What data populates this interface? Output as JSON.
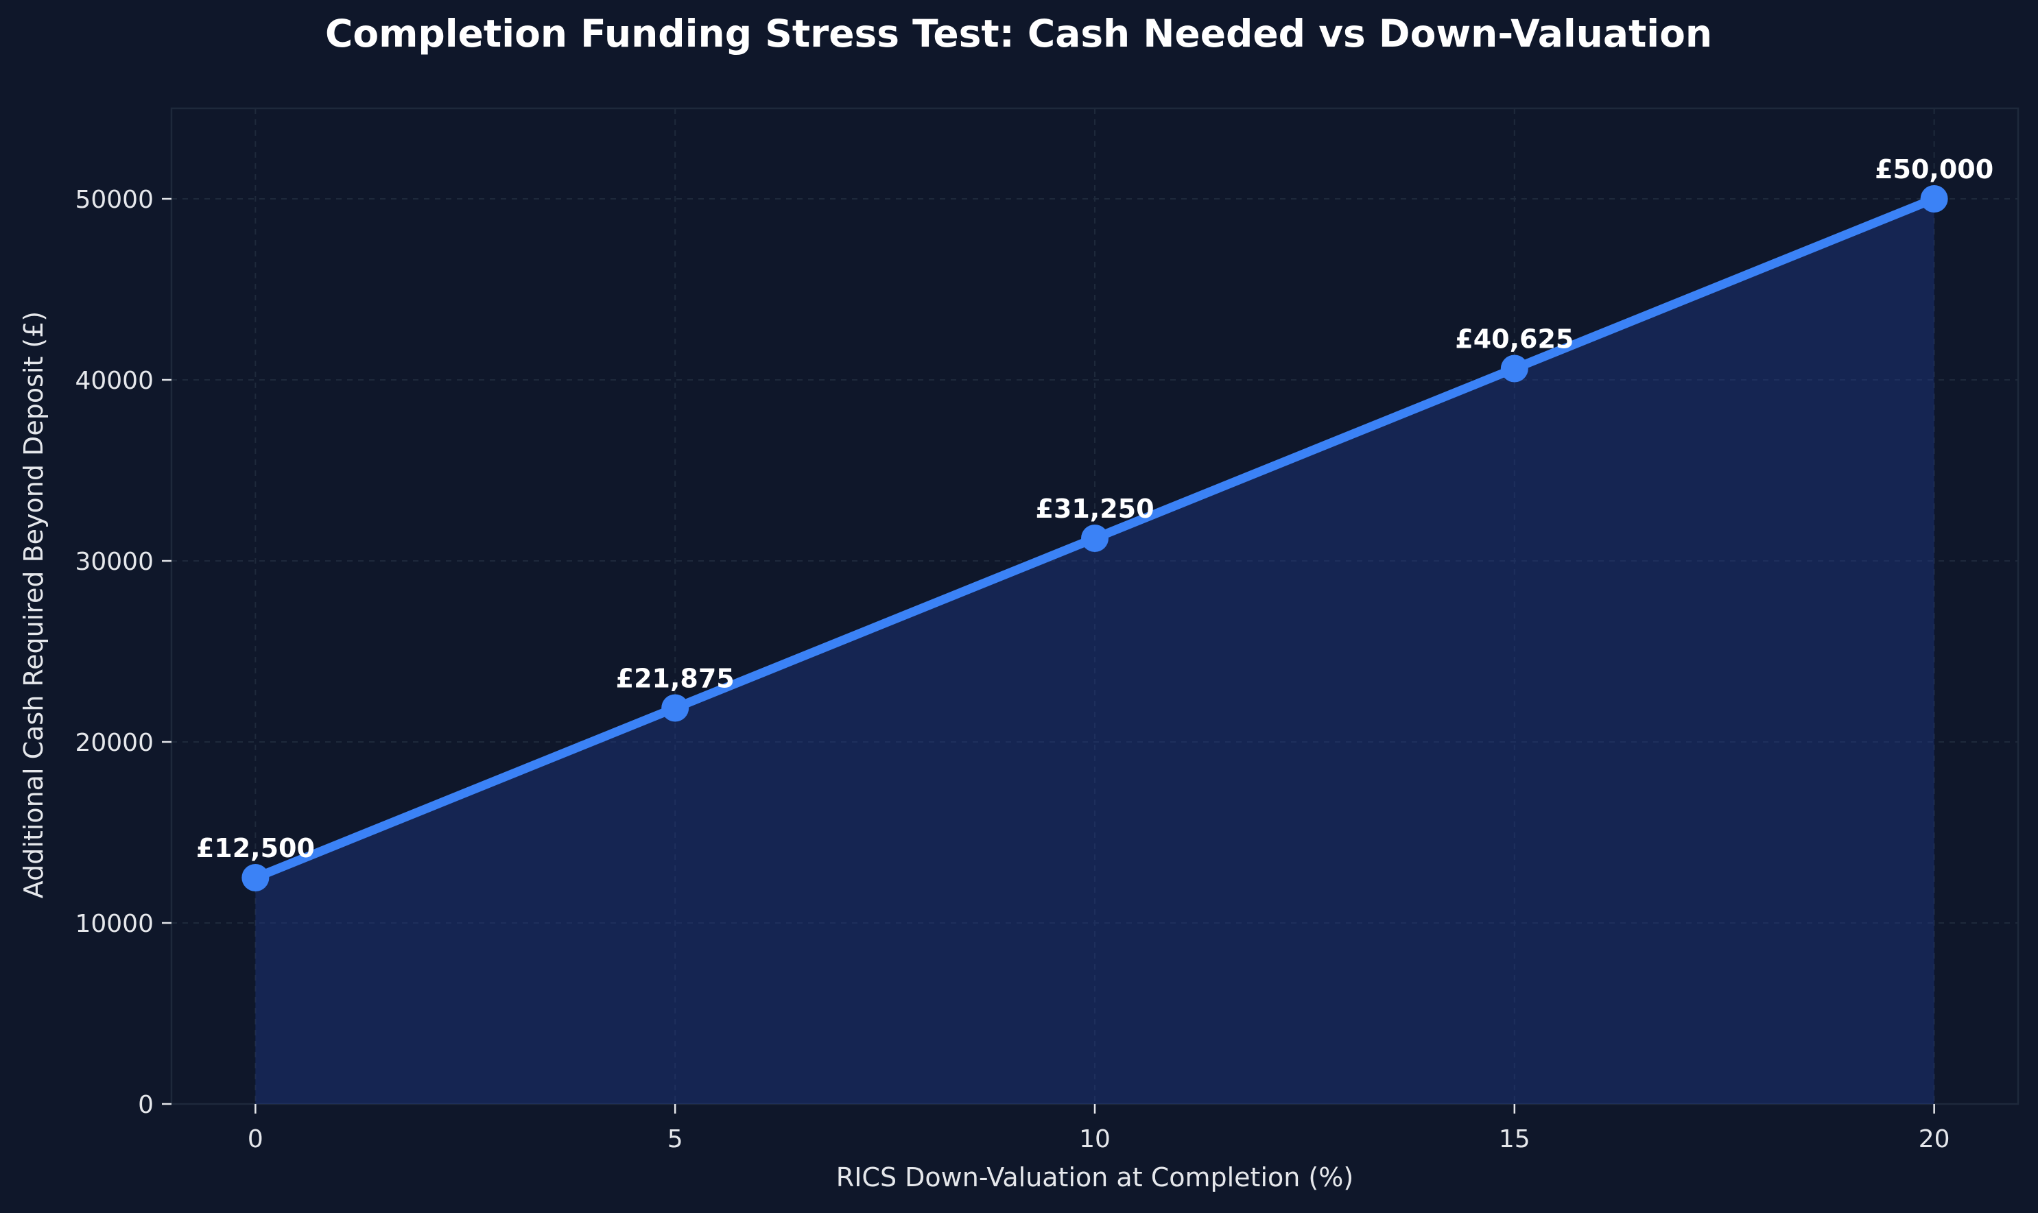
{
  "colors": {
    "background": "#0f172a",
    "plot_background": "#0f172a",
    "line": "#3b82f6",
    "area_fill": "#1e3a8a",
    "grid": "#1e293b",
    "text": "#e5e7eb"
  },
  "chart_data": {
    "type": "area",
    "title": "Completion Funding Stress Test: Cash Needed vs Down-Valuation",
    "xlabel": "RICS Down-Valuation at Completion (%)",
    "ylabel": "Additional Cash Required Beyond Deposit (£)",
    "x": [
      0,
      5,
      10,
      15,
      20
    ],
    "y": [
      12500,
      21875,
      31250,
      40625,
      50000
    ],
    "data_labels": [
      "£12,500",
      "£21,875",
      "£31,250",
      "£40,625",
      "£50,000"
    ],
    "xlim": [
      -1,
      21
    ],
    "ylim": [
      0,
      55000
    ],
    "xticks": [
      0,
      5,
      10,
      15,
      20
    ],
    "xtick_labels": [
      "0",
      "5",
      "10",
      "15",
      "20"
    ],
    "yticks": [
      0,
      10000,
      20000,
      30000,
      40000,
      50000
    ],
    "ytick_labels": [
      "0",
      "10000",
      "20000",
      "30000",
      "40000",
      "50000"
    ],
    "grid": true,
    "legend": "none"
  }
}
